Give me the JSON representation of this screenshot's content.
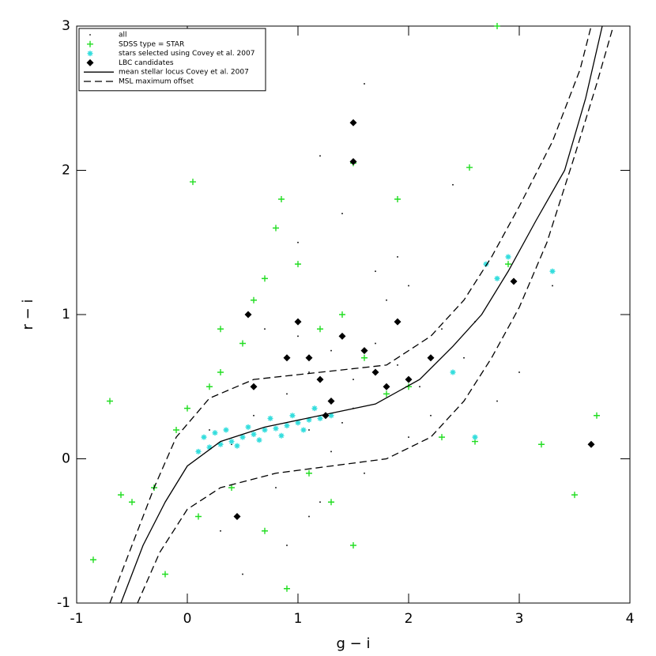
{
  "chart_data": {
    "type": "scatter",
    "x_label": "g − i",
    "y_label": "r − i",
    "xlim": [
      -1,
      4
    ],
    "ylim": [
      -1,
      3
    ],
    "xticks": [
      -1,
      0,
      1,
      2,
      3,
      4
    ],
    "yticks": [
      -1,
      0,
      1,
      2,
      3
    ],
    "legend": "upper left",
    "series": [
      {
        "name": "all",
        "color": "#000000",
        "marker": "dot",
        "x": [
          0.6,
          0.9,
          1.1,
          1.3,
          1.5,
          1.7,
          1.9,
          2.1,
          0.4,
          0.8,
          1.2,
          1.6,
          2.0,
          2.3,
          2.5,
          1.0,
          1.4,
          1.8,
          0.7,
          1.1,
          1.5,
          2.2,
          0.3,
          0.9,
          1.3,
          1.7,
          2.6,
          2.8,
          1.2,
          1.6,
          0.5,
          1.0,
          1.9,
          2.4,
          3.0,
          3.3,
          0.2,
          1.4,
          2.0,
          1.1
        ],
        "y": [
          0.3,
          0.45,
          0.6,
          0.75,
          0.55,
          0.8,
          0.65,
          0.5,
          0.1,
          -0.2,
          -0.3,
          -0.1,
          1.2,
          0.9,
          0.7,
          1.5,
          1.7,
          1.1,
          0.9,
          0.2,
          0.35,
          0.3,
          -0.5,
          -0.6,
          0.05,
          1.3,
          0.95,
          0.4,
          2.1,
          2.6,
          -0.8,
          0.85,
          1.4,
          1.9,
          0.6,
          1.2,
          0.2,
          0.25,
          0.15,
          -0.4
        ]
      },
      {
        "name": "SDSS type = STAR",
        "color": "#22dd22",
        "marker": "plus",
        "x": [
          -0.85,
          -0.7,
          -0.5,
          -0.3,
          -0.1,
          0.0,
          0.2,
          0.3,
          0.5,
          0.6,
          0.8,
          1.0,
          1.2,
          1.4,
          1.6,
          1.8,
          2.0,
          2.3,
          2.6,
          2.9,
          3.2,
          3.5,
          -0.2,
          0.1,
          0.4,
          0.7,
          0.9,
          1.1,
          1.3,
          1.5,
          0.85,
          0.7,
          1.5,
          1.9,
          2.55,
          2.8,
          3.7,
          -0.6,
          0.05,
          0.3
        ],
        "y": [
          -0.7,
          0.4,
          -0.3,
          -0.2,
          0.2,
          0.35,
          0.5,
          0.6,
          0.8,
          1.1,
          1.6,
          1.35,
          0.9,
          1.0,
          0.7,
          0.45,
          0.5,
          0.15,
          0.12,
          1.35,
          0.1,
          -0.25,
          -0.8,
          -0.4,
          -0.2,
          -0.5,
          -0.9,
          -0.1,
          -0.3,
          -0.6,
          1.8,
          1.25,
          2.05,
          1.8,
          2.02,
          3.0,
          0.3,
          -0.25,
          1.92,
          0.9
        ]
      },
      {
        "name": "stars selected using Covey et al. 2007",
        "color": "#33dddd",
        "marker": "asterisk",
        "x": [
          0.1,
          0.2,
          0.3,
          0.4,
          0.5,
          0.6,
          0.7,
          0.8,
          0.9,
          1.0,
          1.1,
          1.2,
          1.3,
          0.15,
          0.25,
          0.35,
          0.45,
          0.55,
          0.65,
          0.75,
          0.85,
          0.95,
          1.05,
          1.15,
          2.7,
          2.8,
          2.9,
          3.3,
          2.4,
          2.6
        ],
        "y": [
          0.05,
          0.08,
          0.1,
          0.12,
          0.15,
          0.17,
          0.2,
          0.21,
          0.23,
          0.25,
          0.27,
          0.28,
          0.3,
          0.15,
          0.18,
          0.2,
          0.09,
          0.22,
          0.13,
          0.28,
          0.16,
          0.3,
          0.2,
          0.35,
          1.35,
          1.25,
          1.4,
          1.3,
          0.6,
          0.15
        ]
      },
      {
        "name": "LBC candidates",
        "color": "#000000",
        "marker": "diamond",
        "x": [
          1.5,
          1.5,
          1.2,
          0.9,
          1.0,
          1.4,
          1.7,
          1.8,
          2.0,
          1.3,
          1.1,
          0.55,
          2.95,
          3.65,
          0.6,
          1.6,
          1.25,
          0.45,
          2.2,
          1.9
        ],
        "y": [
          2.33,
          2.06,
          0.55,
          0.7,
          0.95,
          0.85,
          0.6,
          0.5,
          0.55,
          0.4,
          0.7,
          1.0,
          1.23,
          0.1,
          0.5,
          0.75,
          0.3,
          -0.4,
          0.7,
          0.95
        ]
      },
      {
        "name": "mean stellar locus Covey et al. 2007",
        "color": "#000000",
        "marker": "line",
        "dash": false,
        "x": [
          -0.6,
          -0.4,
          -0.2,
          0,
          0.3,
          0.7,
          1.2,
          1.7,
          2.1,
          2.4,
          2.66,
          2.9,
          3.15,
          3.41,
          3.6,
          3.75
        ],
        "y": [
          -1,
          -0.6,
          -0.3,
          -0.05,
          0.12,
          0.22,
          0.3,
          0.38,
          0.55,
          0.78,
          1.0,
          1.3,
          1.65,
          2.0,
          2.5,
          3.0
        ]
      },
      {
        "name": "MSL maximum offset",
        "color": "#000000",
        "marker": "line",
        "dash": true,
        "x": [
          -0.7,
          -0.5,
          -0.3,
          -0.1,
          0.2,
          0.6,
          1.2,
          1.8,
          2.2,
          2.5,
          2.75,
          3.0,
          3.3,
          3.55,
          3.65
        ],
        "y": [
          -1,
          -0.6,
          -0.2,
          0.15,
          0.42,
          0.55,
          0.6,
          0.65,
          0.85,
          1.1,
          1.4,
          1.75,
          2.2,
          2.7,
          3.0
        ]
      },
      {
        "name": null,
        "color": "#000000",
        "marker": "line",
        "dash": true,
        "x": [
          -0.45,
          -0.25,
          0.0,
          0.3,
          0.8,
          1.3,
          1.8,
          2.2,
          2.5,
          2.75,
          3.0,
          3.25,
          3.5,
          3.7,
          3.85
        ],
        "y": [
          -1,
          -0.65,
          -0.35,
          -0.2,
          -0.1,
          -0.05,
          0.0,
          0.15,
          0.4,
          0.7,
          1.05,
          1.5,
          2.1,
          2.6,
          3.0
        ]
      }
    ]
  }
}
